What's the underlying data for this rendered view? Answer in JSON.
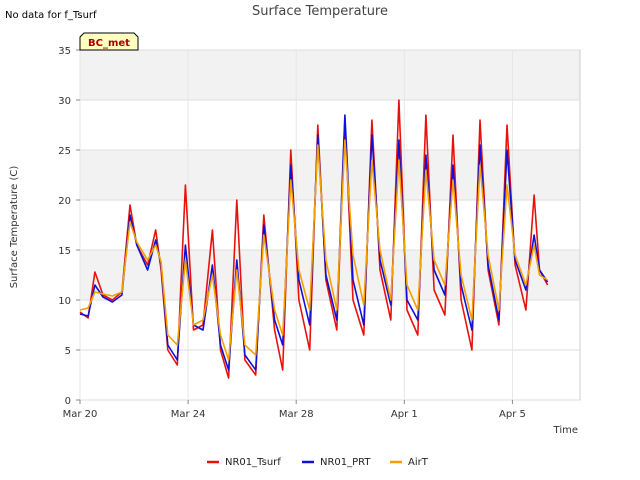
{
  "note": "No data for f_Tsurf",
  "badge": "BC_met",
  "chart_data": {
    "type": "line",
    "title": "Surface Temperature",
    "xlabel": "Time",
    "ylabel": "Surface Temperature (C)",
    "ylim": [
      0,
      35
    ],
    "xlim": [
      0,
      18.5
    ],
    "yticks": [
      0,
      5,
      10,
      15,
      20,
      25,
      30,
      35
    ],
    "xticks": [
      {
        "value": 0,
        "label": "Mar 20"
      },
      {
        "value": 4,
        "label": "Mar 24"
      },
      {
        "value": 8,
        "label": "Mar 28"
      },
      {
        "value": 12,
        "label": "Apr 1"
      },
      {
        "value": 16,
        "label": "Apr 5"
      }
    ],
    "grid": true,
    "legend_position": "bottom",
    "x": [
      0,
      0.3,
      0.55,
      0.85,
      1.2,
      1.55,
      1.85,
      2.1,
      2.5,
      2.8,
      3.0,
      3.25,
      3.6,
      3.9,
      4.2,
      4.55,
      4.9,
      5.2,
      5.5,
      5.8,
      6.1,
      6.5,
      6.8,
      7.2,
      7.5,
      7.8,
      8.1,
      8.5,
      8.8,
      9.1,
      9.5,
      9.8,
      10.1,
      10.5,
      10.8,
      11.1,
      11.5,
      11.8,
      12.1,
      12.5,
      12.8,
      13.1,
      13.5,
      13.8,
      14.1,
      14.5,
      14.8,
      15.1,
      15.5,
      15.8,
      16.1,
      16.5,
      16.8,
      17.0,
      17.3
    ],
    "series": [
      {
        "name": "NR01_Tsurf",
        "color": "#e8120c",
        "values": [
          8.8,
          8.2,
          12.8,
          10.5,
          10.0,
          10.8,
          19.5,
          15.5,
          13.5,
          17.0,
          13.0,
          5.0,
          3.5,
          21.5,
          7.0,
          7.5,
          17.0,
          5.0,
          2.2,
          20.0,
          4.0,
          2.5,
          18.5,
          7.0,
          3.0,
          25.0,
          10.0,
          5.0,
          27.5,
          12.0,
          7.0,
          28.0,
          10.0,
          6.5,
          28.0,
          13.0,
          8.0,
          30.0,
          9.0,
          6.5,
          28.5,
          11.0,
          8.5,
          26.5,
          10.0,
          5.0,
          28.0,
          13.0,
          7.5,
          27.5,
          13.5,
          9.0,
          20.5,
          13.0,
          11.5
        ]
      },
      {
        "name": "NR01_PRT",
        "color": "#1010d8",
        "values": [
          8.6,
          8.4,
          11.5,
          10.3,
          9.8,
          10.5,
          18.5,
          15.5,
          13.0,
          16.0,
          13.5,
          5.5,
          4.0,
          15.5,
          7.5,
          7.0,
          13.5,
          5.5,
          3.0,
          14.0,
          4.5,
          3.0,
          17.5,
          8.0,
          5.5,
          23.5,
          12.0,
          7.5,
          26.5,
          12.5,
          8.0,
          28.5,
          12.0,
          7.5,
          26.5,
          14.0,
          9.5,
          26.0,
          10.0,
          8.0,
          24.5,
          13.0,
          10.5,
          23.5,
          11.5,
          7.0,
          25.5,
          13.5,
          8.0,
          25.0,
          14.0,
          11.0,
          16.5,
          13.0,
          11.8
        ]
      },
      {
        "name": "AirT",
        "color": "#f5a000",
        "values": [
          9.0,
          9.2,
          10.8,
          10.6,
          10.4,
          10.8,
          17.8,
          15.8,
          14.0,
          15.5,
          13.8,
          6.5,
          5.5,
          14.0,
          7.5,
          8.0,
          12.5,
          6.5,
          4.0,
          13.0,
          5.5,
          4.5,
          16.5,
          9.0,
          6.5,
          22.0,
          13.0,
          9.0,
          25.5,
          14.0,
          9.0,
          26.0,
          14.5,
          9.5,
          24.0,
          15.0,
          10.0,
          24.0,
          11.5,
          9.0,
          23.0,
          14.0,
          11.5,
          22.0,
          12.5,
          8.0,
          23.5,
          14.5,
          9.0,
          21.5,
          14.5,
          11.5,
          15.5,
          12.5,
          12.0
        ]
      }
    ]
  }
}
